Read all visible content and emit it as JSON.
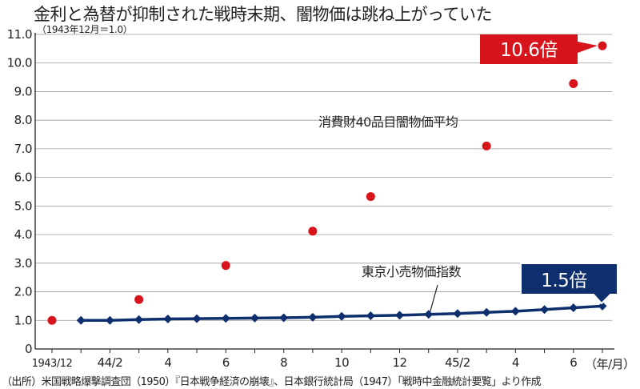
{
  "chart_data": {
    "type": "scatter+line",
    "title": "金利と為替が抑制された戦時末期、闇物価は跳ね上がっていた",
    "subtitle": "（1943年12月＝1.0）",
    "source": "（出所）米国戦略爆撃調査団（1950）『日本戦争経済の崩壊』、日本銀行統計局（1947）「戦時中金融統計要覧」より作成",
    "x_unit_label": "（年/月）",
    "ylim": [
      0,
      11
    ],
    "yticks": [
      "0",
      "1.0",
      "2.0",
      "3.0",
      "4.0",
      "5.0",
      "6.0",
      "7.0",
      "8.0",
      "9.0",
      "10.0",
      "11.0"
    ],
    "xticks": [
      {
        "index": 0,
        "label": "1943/12"
      },
      {
        "index": 2,
        "label": "44/2"
      },
      {
        "index": 4,
        "label": "4"
      },
      {
        "index": 6,
        "label": "6"
      },
      {
        "index": 8,
        "label": "8"
      },
      {
        "index": 10,
        "label": "10"
      },
      {
        "index": 12,
        "label": "12"
      },
      {
        "index": 14,
        "label": "45/2"
      },
      {
        "index": 16,
        "label": "4"
      },
      {
        "index": 18,
        "label": "6"
      }
    ],
    "x_period_count": 20,
    "series": [
      {
        "name": "消費財40品目闇物価平均",
        "kind": "scatter",
        "color": "#d7141c",
        "x": [
          0,
          3,
          6,
          9,
          11,
          15,
          18,
          19
        ],
        "y": [
          1.0,
          1.73,
          2.92,
          4.12,
          5.33,
          7.1,
          9.28,
          10.6
        ]
      },
      {
        "name": "東京小売物価指数",
        "kind": "line",
        "color": "#0e2f6e",
        "x": [
          1,
          2,
          3,
          4,
          5,
          6,
          7,
          8,
          9,
          10,
          11,
          12,
          13,
          14,
          15,
          16,
          17,
          18,
          19
        ],
        "y": [
          1.0,
          1.0,
          1.03,
          1.05,
          1.06,
          1.07,
          1.08,
          1.09,
          1.11,
          1.14,
          1.16,
          1.18,
          1.21,
          1.24,
          1.28,
          1.32,
          1.38,
          1.44,
          1.5
        ]
      }
    ],
    "callouts": {
      "black_market": {
        "text": "10.6倍",
        "color": "#d7141c"
      },
      "retail": {
        "text": "1.5倍",
        "color": "#0e2f6e"
      }
    }
  }
}
